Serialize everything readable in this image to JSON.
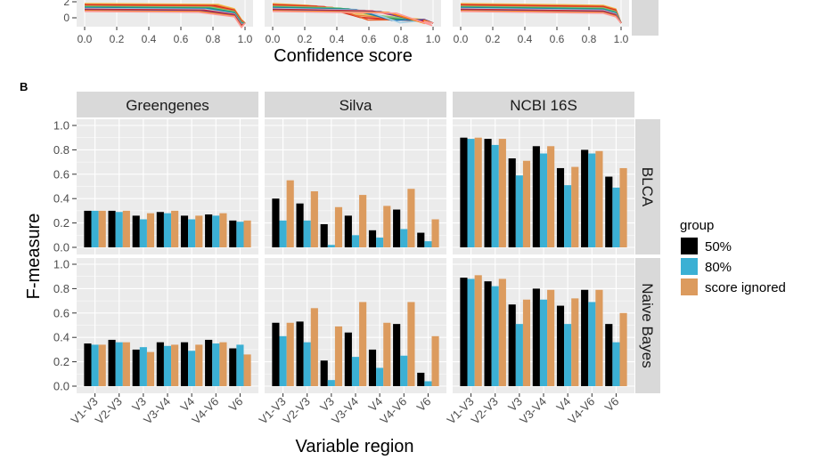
{
  "top_fragment": {
    "x_ticks": [
      "0.0",
      "0.2",
      "0.4",
      "0.6",
      "0.8",
      "1.0"
    ],
    "y_ticks": [
      "0",
      "2"
    ],
    "xlabel": "Confidence score",
    "series_colors": [
      "#f2c14e",
      "#e8823a",
      "#d7261e",
      "#e8612c",
      "#7fc97f",
      "#2ca25f",
      "#1f78b4",
      "#a6cee3",
      "#e31a1c",
      "#6a3d9a",
      "#ff7f00",
      "#fb9a99"
    ]
  },
  "panel_label": "B",
  "chart_data": {
    "type": "bar",
    "xlabel": "Variable region",
    "ylabel": "F-measure",
    "ylim": [
      0,
      1.0
    ],
    "y_ticks": [
      "0.0",
      "0.2",
      "0.4",
      "0.6",
      "0.8",
      "1.0"
    ],
    "grid": true,
    "legend_title": "group",
    "legend_position": "right",
    "categories": [
      "V1-V3",
      "V2-V3",
      "V3",
      "V3-V4",
      "V4",
      "V4-V6",
      "V6"
    ],
    "series": [
      {
        "name": "50%",
        "color": "#000000"
      },
      {
        "name": "80%",
        "color": "#3bb0d4"
      },
      {
        "name": "score ignored",
        "color": "#dc9b5e"
      }
    ],
    "facet_columns": [
      "Greengenes",
      "Silva",
      "NCBI 16S"
    ],
    "facet_rows": [
      "BLCA",
      "Naive Bayes"
    ],
    "panels": [
      {
        "row": "BLCA",
        "column": "Greengenes",
        "values": [
          [
            0.3,
            0.3,
            0.26,
            0.29,
            0.26,
            0.27,
            0.22
          ],
          [
            0.3,
            0.29,
            0.23,
            0.28,
            0.23,
            0.26,
            0.21
          ],
          [
            0.3,
            0.3,
            0.28,
            0.3,
            0.26,
            0.28,
            0.22
          ]
        ]
      },
      {
        "row": "BLCA",
        "column": "Silva",
        "values": [
          [
            0.4,
            0.36,
            0.19,
            0.26,
            0.14,
            0.31,
            0.12
          ],
          [
            0.22,
            0.22,
            0.02,
            0.1,
            0.08,
            0.15,
            0.05
          ],
          [
            0.55,
            0.46,
            0.33,
            0.43,
            0.34,
            0.48,
            0.23
          ]
        ]
      },
      {
        "row": "BLCA",
        "column": "NCBI 16S",
        "values": [
          [
            0.9,
            0.89,
            0.73,
            0.83,
            0.65,
            0.8,
            0.58
          ],
          [
            0.89,
            0.84,
            0.59,
            0.77,
            0.51,
            0.77,
            0.49
          ],
          [
            0.9,
            0.89,
            0.71,
            0.83,
            0.66,
            0.79,
            0.65
          ]
        ]
      },
      {
        "row": "Naive Bayes",
        "column": "Greengenes",
        "values": [
          [
            0.35,
            0.38,
            0.3,
            0.36,
            0.36,
            0.38,
            0.31
          ],
          [
            0.34,
            0.36,
            0.32,
            0.33,
            0.29,
            0.35,
            0.34
          ],
          [
            0.34,
            0.36,
            0.28,
            0.34,
            0.34,
            0.36,
            0.26
          ]
        ]
      },
      {
        "row": "Naive Bayes",
        "column": "Silva",
        "values": [
          [
            0.52,
            0.53,
            0.21,
            0.44,
            0.3,
            0.51,
            0.11
          ],
          [
            0.41,
            0.36,
            0.05,
            0.24,
            0.15,
            0.25,
            0.04
          ],
          [
            0.52,
            0.64,
            0.49,
            0.69,
            0.52,
            0.69,
            0.41
          ]
        ]
      },
      {
        "row": "Naive Bayes",
        "column": "NCBI 16S",
        "values": [
          [
            0.89,
            0.86,
            0.67,
            0.8,
            0.66,
            0.79,
            0.51
          ],
          [
            0.88,
            0.82,
            0.51,
            0.71,
            0.51,
            0.69,
            0.36
          ],
          [
            0.91,
            0.88,
            0.71,
            0.79,
            0.72,
            0.79,
            0.6
          ]
        ]
      }
    ]
  }
}
